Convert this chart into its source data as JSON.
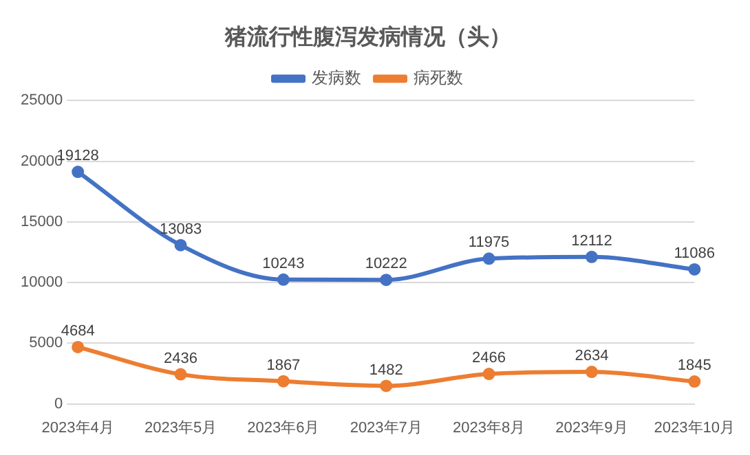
{
  "chart_data": {
    "type": "line",
    "title": "猪流行性腹泻发病情况（头）",
    "categories": [
      "2023年4月",
      "2023年5月",
      "2023年6月",
      "2023年7月",
      "2023年8月",
      "2023年9月",
      "2023年10月"
    ],
    "series": [
      {
        "name": "发病数",
        "color": "#4472c4",
        "values": [
          19128,
          13083,
          10243,
          10222,
          11975,
          12112,
          11086
        ]
      },
      {
        "name": "病死数",
        "color": "#ed7d31",
        "values": [
          4684,
          2436,
          1867,
          1482,
          2466,
          2634,
          1845
        ]
      }
    ],
    "ylim": [
      0,
      25000
    ],
    "yticks": [
      0,
      5000,
      10000,
      15000,
      20000,
      25000
    ],
    "grid": "y",
    "legend": "top",
    "marker": "circle",
    "line_style": "solid",
    "data_labels": true
  }
}
